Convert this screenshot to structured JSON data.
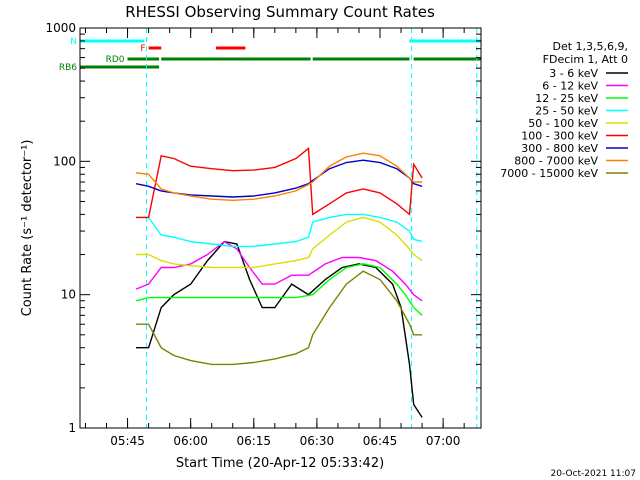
{
  "chart_data": {
    "type": "line",
    "title": "RHESSI Observing Summary Count Rates",
    "xlabel": "Start Time (20-Apr-12 05:33:42)",
    "ylabel": "Count Rate (s⁻¹ detector⁻¹)",
    "y_scale": "log",
    "ylim": [
      1,
      1000
    ],
    "xlim": [
      "05:33:42",
      "07:09:00"
    ],
    "x_ticks": [
      "05:45",
      "06:00",
      "06:15",
      "06:30",
      "06:45",
      "07:00"
    ],
    "y_ticks": [
      "1",
      "10",
      "100",
      "1000"
    ],
    "legend_header": [
      "Det 1,3,5,6,9,",
      "FDecim 1, Att 0"
    ],
    "legend_position": "right",
    "footer_date": "20-Oct-2021 11:07",
    "flags": [
      {
        "name": "N",
        "color": "#00ffff",
        "segments": [
          [
            "05:33:42",
            "05:49:00"
          ],
          [
            "06:52:00",
            "07:09:00"
          ]
        ]
      },
      {
        "name": "F",
        "color": "#ff0000",
        "segments": [
          [
            "05:50:00",
            "05:53:00"
          ],
          [
            "06:06:00",
            "06:13:00"
          ]
        ]
      },
      {
        "name": "RD0",
        "color": "#008000",
        "segments": [
          [
            "05:45:00",
            "05:52:30"
          ],
          [
            "05:53:00",
            "06:28:30"
          ],
          [
            "06:29:00",
            "06:52:00"
          ],
          [
            "06:53:00",
            "07:09:00"
          ]
        ]
      },
      {
        "name": "RB6",
        "color": "#008000",
        "segments": [
          [
            "05:33:42",
            "05:52:30"
          ]
        ]
      }
    ],
    "vlines": [
      {
        "time": "05:49:30",
        "color": "#00ffff"
      },
      {
        "time": "06:52:30",
        "color": "#00ffff"
      },
      {
        "time": "07:08:00",
        "color": "#00ffff"
      }
    ],
    "series": [
      {
        "name": "3 - 6 keV",
        "color": "#000000",
        "points": [
          [
            "05:47",
            "4"
          ],
          [
            "05:50",
            "4"
          ],
          [
            "05:53",
            "8"
          ],
          [
            "05:56",
            "10"
          ],
          [
            "06:00",
            "12"
          ],
          [
            "06:04",
            "18"
          ],
          [
            "06:08",
            "25"
          ],
          [
            "06:11",
            "24"
          ],
          [
            "06:14",
            "13"
          ],
          [
            "06:17",
            "8"
          ],
          [
            "06:20",
            "8"
          ],
          [
            "06:24",
            "12"
          ],
          [
            "06:28",
            "10"
          ],
          [
            "06:32",
            "13"
          ],
          [
            "06:36",
            "16"
          ],
          [
            "06:40",
            "17"
          ],
          [
            "06:44",
            "16"
          ],
          [
            "06:48",
            "12"
          ],
          [
            "06:50",
            "8"
          ],
          [
            "06:52",
            "3"
          ],
          [
            "06:53",
            "1.5"
          ],
          [
            "06:55",
            "1.2"
          ]
        ]
      },
      {
        "name": "6 - 12 keV",
        "color": "#ff00ff",
        "points": [
          [
            "05:47",
            "11"
          ],
          [
            "05:50",
            "12"
          ],
          [
            "05:53",
            "16"
          ],
          [
            "05:56",
            "16"
          ],
          [
            "06:00",
            "17"
          ],
          [
            "06:04",
            "20"
          ],
          [
            "06:08",
            "25"
          ],
          [
            "06:11",
            "22"
          ],
          [
            "06:14",
            "16"
          ],
          [
            "06:17",
            "12"
          ],
          [
            "06:20",
            "12"
          ],
          [
            "06:24",
            "14"
          ],
          [
            "06:28",
            "14"
          ],
          [
            "06:32",
            "17"
          ],
          [
            "06:36",
            "19"
          ],
          [
            "06:40",
            "19"
          ],
          [
            "06:44",
            "18"
          ],
          [
            "06:48",
            "15"
          ],
          [
            "06:51",
            "12"
          ],
          [
            "06:53",
            "10"
          ],
          [
            "06:55",
            "9"
          ]
        ]
      },
      {
        "name": "12 - 25 keV",
        "color": "#00ff00",
        "points": [
          [
            "05:47",
            "9"
          ],
          [
            "05:50",
            "9.5"
          ],
          [
            "05:53",
            "9.5"
          ],
          [
            "05:56",
            "9.5"
          ],
          [
            "06:00",
            "9.5"
          ],
          [
            "06:05",
            "9.5"
          ],
          [
            "06:10",
            "9.5"
          ],
          [
            "06:15",
            "9.5"
          ],
          [
            "06:20",
            "9.5"
          ],
          [
            "06:25",
            "9.5"
          ],
          [
            "06:29",
            "10"
          ],
          [
            "06:33",
            "13"
          ],
          [
            "06:37",
            "16"
          ],
          [
            "06:41",
            "17"
          ],
          [
            "06:45",
            "16"
          ],
          [
            "06:49",
            "12"
          ],
          [
            "06:51",
            "10"
          ],
          [
            "06:53",
            "8"
          ],
          [
            "06:55",
            "7"
          ]
        ]
      },
      {
        "name": "25 - 50 keV",
        "color": "#00ffff",
        "points": [
          [
            "05:47",
            "38"
          ],
          [
            "05:50",
            "38"
          ],
          [
            "05:53",
            "28"
          ],
          [
            "05:56",
            "27"
          ],
          [
            "06:00",
            "25"
          ],
          [
            "06:05",
            "24"
          ],
          [
            "06:10",
            "23"
          ],
          [
            "06:15",
            "23"
          ],
          [
            "06:20",
            "24"
          ],
          [
            "06:25",
            "25"
          ],
          [
            "06:28",
            "27"
          ],
          [
            "06:29",
            "35"
          ],
          [
            "06:33",
            "38"
          ],
          [
            "06:37",
            "40"
          ],
          [
            "06:41",
            "40"
          ],
          [
            "06:45",
            "38"
          ],
          [
            "06:49",
            "35"
          ],
          [
            "06:52",
            "30"
          ],
          [
            "06:53",
            "26"
          ],
          [
            "06:55",
            "25"
          ]
        ]
      },
      {
        "name": "50 - 100 keV",
        "color": "#dddd00",
        "points": [
          [
            "05:47",
            "20"
          ],
          [
            "05:50",
            "20"
          ],
          [
            "05:53",
            "18"
          ],
          [
            "05:56",
            "17"
          ],
          [
            "06:00",
            "16.5"
          ],
          [
            "06:05",
            "16"
          ],
          [
            "06:10",
            "16"
          ],
          [
            "06:15",
            "16"
          ],
          [
            "06:20",
            "17"
          ],
          [
            "06:25",
            "18"
          ],
          [
            "06:28",
            "19"
          ],
          [
            "06:29",
            "22"
          ],
          [
            "06:33",
            "28"
          ],
          [
            "06:37",
            "35"
          ],
          [
            "06:41",
            "38"
          ],
          [
            "06:45",
            "35"
          ],
          [
            "06:49",
            "28"
          ],
          [
            "06:52",
            "22"
          ],
          [
            "06:53",
            "20"
          ],
          [
            "06:55",
            "18"
          ]
        ]
      },
      {
        "name": "100 - 300 keV",
        "color": "#ff0000",
        "points": [
          [
            "05:47",
            "38"
          ],
          [
            "05:50",
            "38"
          ],
          [
            "05:53",
            "110"
          ],
          [
            "05:56",
            "105"
          ],
          [
            "06:00",
            "92"
          ],
          [
            "06:05",
            "88"
          ],
          [
            "06:10",
            "85"
          ],
          [
            "06:15",
            "86"
          ],
          [
            "06:20",
            "90"
          ],
          [
            "06:25",
            "105"
          ],
          [
            "06:28",
            "125"
          ],
          [
            "06:29",
            "40"
          ],
          [
            "06:33",
            "48"
          ],
          [
            "06:37",
            "58"
          ],
          [
            "06:41",
            "62"
          ],
          [
            "06:45",
            "58"
          ],
          [
            "06:49",
            "48"
          ],
          [
            "06:52",
            "40"
          ],
          [
            "06:53",
            "95"
          ],
          [
            "06:55",
            "75"
          ]
        ]
      },
      {
        "name": "300 - 800 keV",
        "color": "#0000cc",
        "points": [
          [
            "05:47",
            "68"
          ],
          [
            "05:50",
            "65"
          ],
          [
            "05:53",
            "60"
          ],
          [
            "05:56",
            "58"
          ],
          [
            "06:00",
            "56"
          ],
          [
            "06:05",
            "55"
          ],
          [
            "06:10",
            "54"
          ],
          [
            "06:15",
            "55"
          ],
          [
            "06:20",
            "58"
          ],
          [
            "06:25",
            "63"
          ],
          [
            "06:28",
            "68"
          ],
          [
            "06:29",
            "72"
          ],
          [
            "06:33",
            "88"
          ],
          [
            "06:37",
            "98"
          ],
          [
            "06:41",
            "102"
          ],
          [
            "06:45",
            "98"
          ],
          [
            "06:49",
            "88"
          ],
          [
            "06:52",
            "75"
          ],
          [
            "06:53",
            "68"
          ],
          [
            "06:55",
            "65"
          ]
        ]
      },
      {
        "name": "800 - 7000 keV",
        "color": "#ff8000",
        "points": [
          [
            "05:47",
            "82"
          ],
          [
            "05:50",
            "80"
          ],
          [
            "05:53",
            "62"
          ],
          [
            "05:56",
            "58"
          ],
          [
            "06:00",
            "55"
          ],
          [
            "06:05",
            "52"
          ],
          [
            "06:10",
            "51"
          ],
          [
            "06:15",
            "52"
          ],
          [
            "06:20",
            "55"
          ],
          [
            "06:25",
            "60"
          ],
          [
            "06:28",
            "67"
          ],
          [
            "06:29",
            "70"
          ],
          [
            "06:33",
            "92"
          ],
          [
            "06:37",
            "108"
          ],
          [
            "06:41",
            "115"
          ],
          [
            "06:45",
            "110"
          ],
          [
            "06:49",
            "92"
          ],
          [
            "06:52",
            "75"
          ],
          [
            "06:53",
            "70"
          ],
          [
            "06:55",
            "70"
          ]
        ]
      },
      {
        "name": "7000 - 15000 keV",
        "color": "#808000",
        "points": [
          [
            "05:47",
            "6"
          ],
          [
            "05:50",
            "6"
          ],
          [
            "05:53",
            "4"
          ],
          [
            "05:56",
            "3.5"
          ],
          [
            "06:00",
            "3.2"
          ],
          [
            "06:05",
            "3"
          ],
          [
            "06:10",
            "3"
          ],
          [
            "06:15",
            "3.1"
          ],
          [
            "06:20",
            "3.3"
          ],
          [
            "06:25",
            "3.6"
          ],
          [
            "06:28",
            "4"
          ],
          [
            "06:29",
            "5"
          ],
          [
            "06:33",
            "8"
          ],
          [
            "06:37",
            "12"
          ],
          [
            "06:41",
            "15"
          ],
          [
            "06:45",
            "13"
          ],
          [
            "06:49",
            "9"
          ],
          [
            "06:52",
            "6"
          ],
          [
            "06:53",
            "5"
          ],
          [
            "06:55",
            "5"
          ]
        ]
      }
    ]
  }
}
